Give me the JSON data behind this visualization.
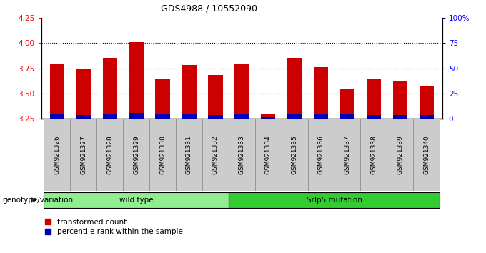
{
  "title": "GDS4988 / 10552090",
  "samples": [
    "GSM921326",
    "GSM921327",
    "GSM921328",
    "GSM921329",
    "GSM921330",
    "GSM921331",
    "GSM921332",
    "GSM921333",
    "GSM921334",
    "GSM921335",
    "GSM921336",
    "GSM921337",
    "GSM921338",
    "GSM921339",
    "GSM921340"
  ],
  "transformed_count": [
    3.8,
    3.74,
    3.85,
    4.01,
    3.65,
    3.78,
    3.68,
    3.8,
    3.3,
    3.85,
    3.76,
    3.55,
    3.65,
    3.63,
    3.58
  ],
  "percentile_rank": [
    5,
    4,
    5,
    6,
    5,
    5,
    4,
    5,
    2,
    5,
    5,
    5,
    4,
    4,
    4
  ],
  "ymin": 3.25,
  "ymax": 4.25,
  "yticks": [
    3.25,
    3.5,
    3.75,
    4.0,
    4.25
  ],
  "right_yticks": [
    0,
    25,
    50,
    75,
    100
  ],
  "right_ytick_labels": [
    "0",
    "25",
    "50",
    "75",
    "100%"
  ],
  "groups": [
    {
      "label": "wild type",
      "start": 0,
      "end": 7,
      "color": "#90EE90"
    },
    {
      "label": "Srlp5 mutation",
      "start": 7,
      "end": 15,
      "color": "#33CC33"
    }
  ],
  "bar_color_red": "#CC0000",
  "bar_color_blue": "#0000BB",
  "bar_width": 0.55,
  "background_color": "#ffffff",
  "grid_color": "#000000",
  "legend_items": [
    {
      "label": "transformed count",
      "color": "#CC0000"
    },
    {
      "label": "percentile rank within the sample",
      "color": "#0000BB"
    }
  ]
}
